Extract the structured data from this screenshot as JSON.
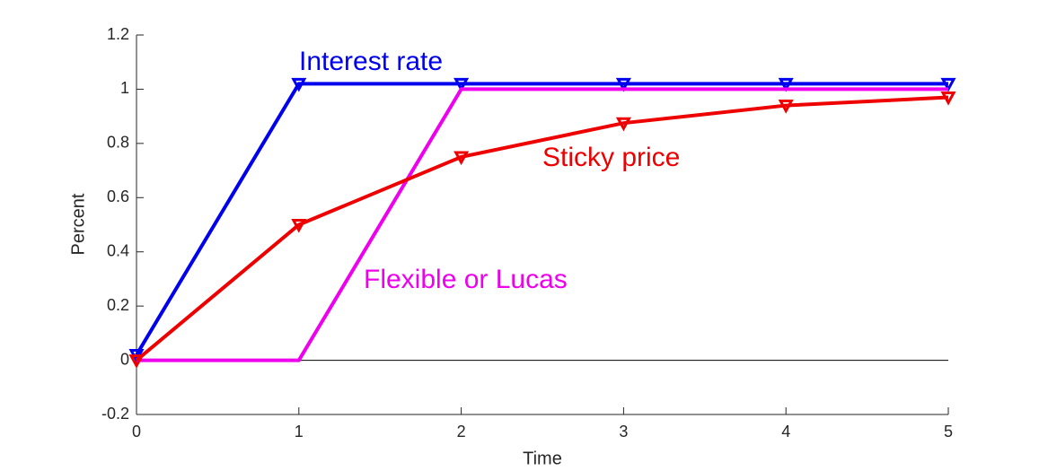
{
  "chart_data": {
    "type": "line",
    "x_label": "Time",
    "y_label": "Percent",
    "x": [
      0,
      1,
      2,
      3,
      4,
      5
    ],
    "series": [
      {
        "name": "Interest rate",
        "color": "#0000ee",
        "values": [
          0.02,
          1.02,
          1.02,
          1.02,
          1.02,
          1.02
        ],
        "markers": true
      },
      {
        "name": "Flexible or Lucas",
        "color": "#ee00ee",
        "values": [
          0,
          0,
          1,
          1,
          1,
          1
        ],
        "markers": false
      },
      {
        "name": "Sticky price",
        "color": "#ee0000",
        "values": [
          0,
          0.5,
          0.75,
          0.875,
          0.94,
          0.97
        ],
        "markers": true
      }
    ],
    "xlim": [
      0,
      5
    ],
    "xticks": [
      0,
      1,
      2,
      3,
      4,
      5
    ],
    "ylim": [
      -0.2,
      1.2
    ],
    "yticks": [
      -0.2,
      0,
      0.2,
      0.4,
      0.6,
      0.8,
      1,
      1.2
    ],
    "grid": false
  }
}
